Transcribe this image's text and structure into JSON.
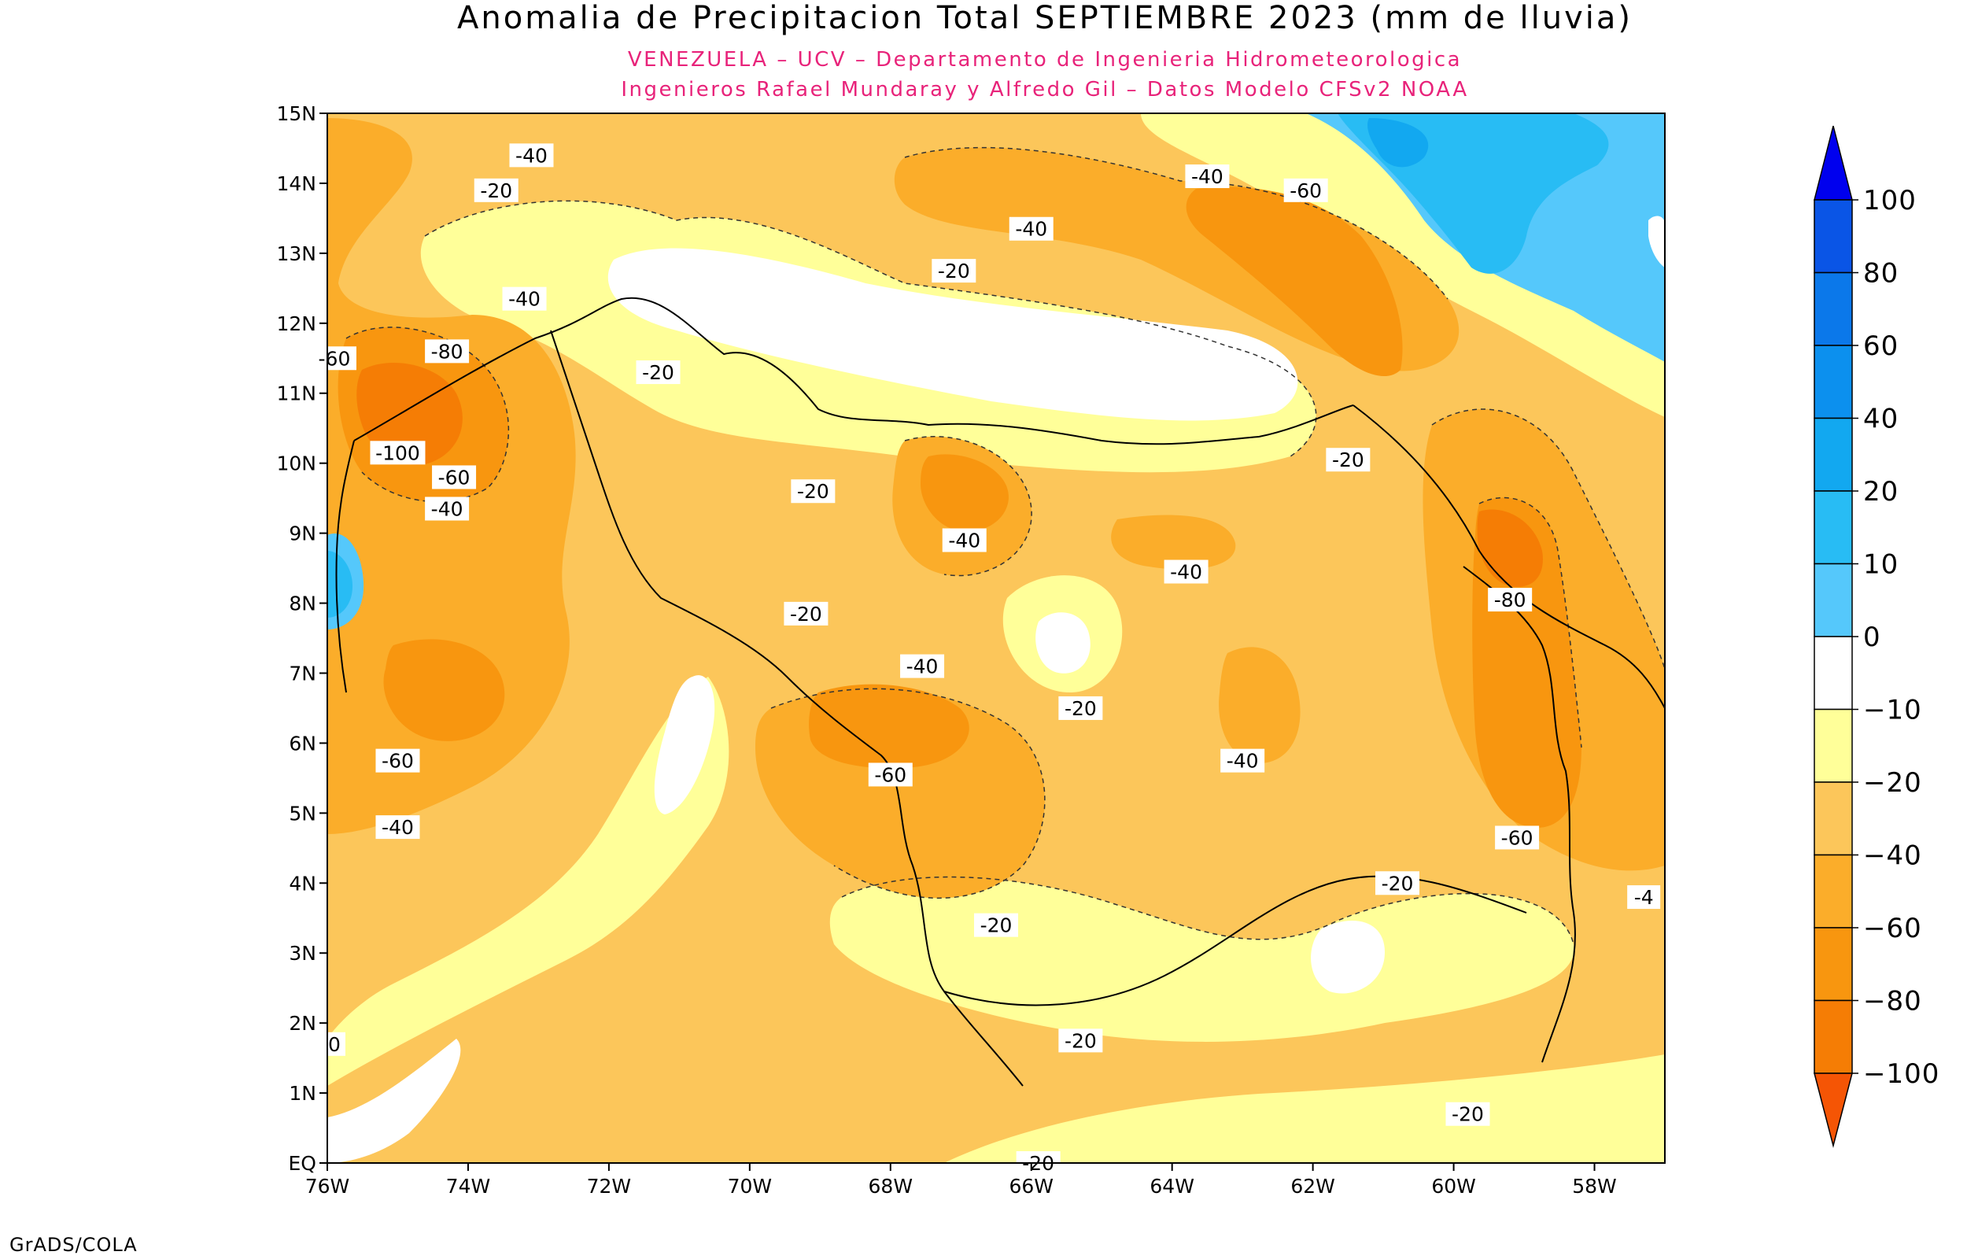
{
  "title": "Anomalia de Precipitacion Total SEPTIEMBRE 2023 (mm de lluvia)",
  "subtitle_line1": "VENEZUELA – UCV – Departamento de Ingenieria Hidrometeorologica",
  "subtitle_line2": "Ingenieros Rafael Mundaray y Alfredo Gil – Datos Modelo CFSv2 NOAA",
  "credit": "GrADS/COLA",
  "axes": {
    "lat_ticks": [
      "15N",
      "14N",
      "13N",
      "12N",
      "11N",
      "10N",
      "9N",
      "8N",
      "7N",
      "6N",
      "5N",
      "4N",
      "3N",
      "2N",
      "1N",
      "EQ"
    ],
    "lon_ticks": [
      "76W",
      "74W",
      "72W",
      "70W",
      "68W",
      "66W",
      "64W",
      "62W",
      "60W",
      "58W"
    ],
    "lat_range": [
      0,
      15
    ],
    "lon_range": [
      -76,
      -57
    ]
  },
  "colorbar": {
    "labels": [
      "100",
      "80",
      "60",
      "40",
      "20",
      "10",
      "0",
      "-10",
      "-20",
      "-40",
      "-60",
      "-80",
      "-100"
    ],
    "colors": [
      "#0000ee",
      "#0a55e6",
      "#0b78ea",
      "#0c90ee",
      "#12a8f0",
      "#28bcf4",
      "#55c8fb",
      "#ffffff",
      "#ffff99",
      "#fcc65a",
      "#fbad2a",
      "#f8960f",
      "#f57d05",
      "#f55505"
    ]
  },
  "contour_labels": [
    {
      "text": "-40",
      "lon": -73.1,
      "lat": 14.4
    },
    {
      "text": "-20",
      "lon": -73.6,
      "lat": 13.9
    },
    {
      "text": "-40",
      "lon": -73.2,
      "lat": 12.35
    },
    {
      "text": "-80",
      "lon": -74.3,
      "lat": 11.6
    },
    {
      "text": "-60",
      "lon": -75.9,
      "lat": 11.5
    },
    {
      "text": "-100",
      "lon": -75.0,
      "lat": 10.15
    },
    {
      "text": "-60",
      "lon": -74.2,
      "lat": 9.8
    },
    {
      "text": "-40",
      "lon": -74.3,
      "lat": 9.35
    },
    {
      "text": "-20",
      "lon": -71.3,
      "lat": 11.3
    },
    {
      "text": "-20",
      "lon": -69.1,
      "lat": 9.6
    },
    {
      "text": "-20",
      "lon": -69.2,
      "lat": 7.85
    },
    {
      "text": "-40",
      "lon": -66.95,
      "lat": 8.9
    },
    {
      "text": "-40",
      "lon": -67.55,
      "lat": 7.1
    },
    {
      "text": "-60",
      "lon": -68.0,
      "lat": 5.55
    },
    {
      "text": "-20",
      "lon": -65.3,
      "lat": 6.5
    },
    {
      "text": "-40",
      "lon": -63.8,
      "lat": 8.45
    },
    {
      "text": "-40",
      "lon": -63.0,
      "lat": 5.75
    },
    {
      "text": "-20",
      "lon": -61.5,
      "lat": 10.05
    },
    {
      "text": "-80",
      "lon": -59.2,
      "lat": 8.05
    },
    {
      "text": "-60",
      "lon": -59.1,
      "lat": 4.65
    },
    {
      "text": "-20",
      "lon": -60.8,
      "lat": 4.0
    },
    {
      "text": "-20",
      "lon": -66.5,
      "lat": 3.4
    },
    {
      "text": "-20",
      "lon": -65.3,
      "lat": 1.75
    },
    {
      "text": "-20",
      "lon": -59.8,
      "lat": 0.7
    },
    {
      "text": "-20",
      "lon": -65.9,
      "lat": 0.0
    },
    {
      "text": "-20",
      "lon": -67.1,
      "lat": 12.75
    },
    {
      "text": "-40",
      "lon": -66.0,
      "lat": 13.35
    },
    {
      "text": "-40",
      "lon": -63.5,
      "lat": 14.1
    },
    {
      "text": "-60",
      "lon": -62.1,
      "lat": 13.9
    },
    {
      "text": "-60",
      "lon": -75.0,
      "lat": 5.75
    },
    {
      "text": "-40",
      "lon": -75.0,
      "lat": 4.8
    },
    {
      "text": "-4",
      "lon": -57.3,
      "lat": 3.8
    },
    {
      "text": "0",
      "lon": -75.9,
      "lat": 1.7
    }
  ]
}
